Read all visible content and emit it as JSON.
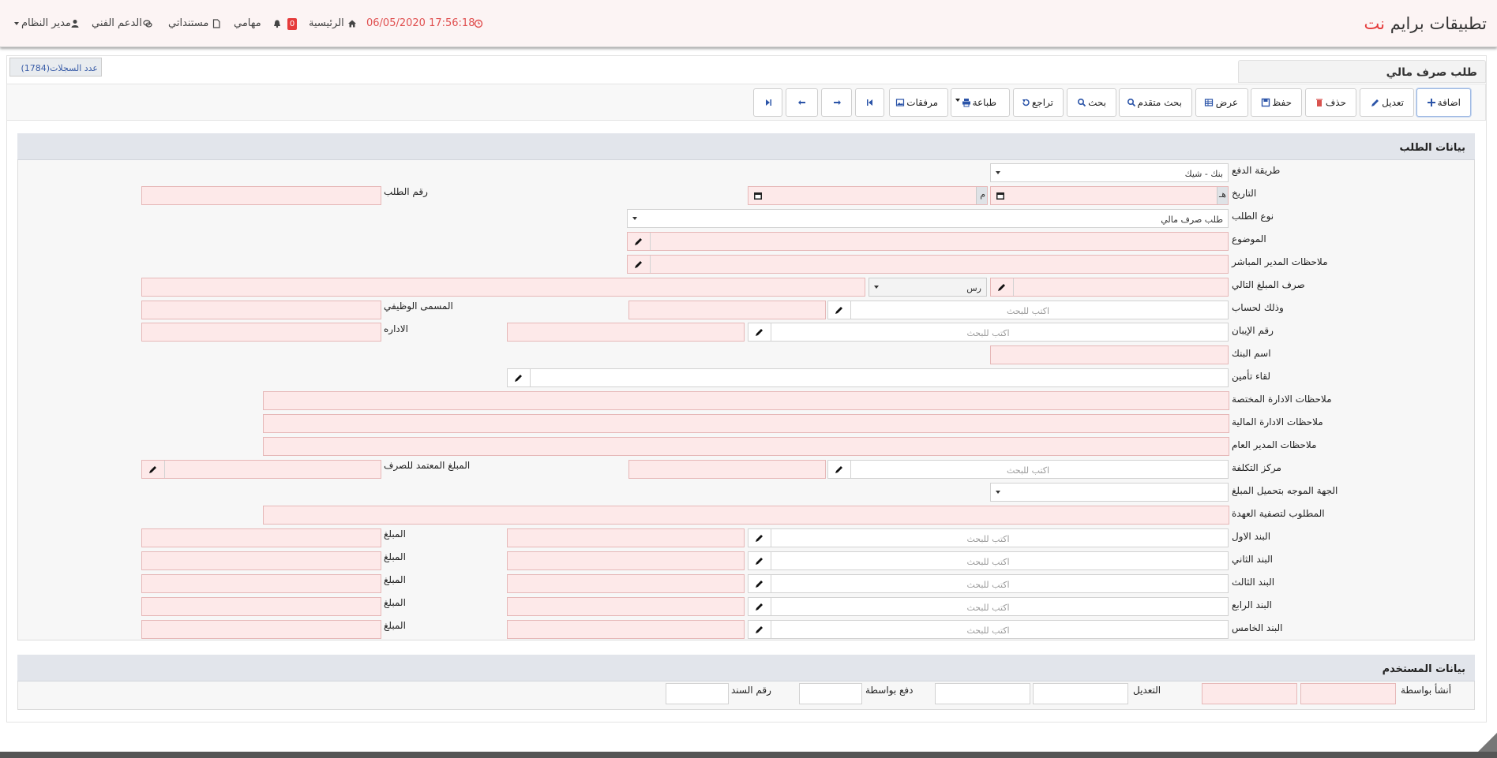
{
  "header": {
    "brand": "تطبيقات برايم",
    "brand_accent": "نت",
    "datetime": "17:56:18 06/05/2020",
    "home": "الرئيسية",
    "tasks": "مهامي",
    "tasks_count": "0",
    "documents": "مستنداتي",
    "support": "الدعم الفني",
    "user": "مدير النظام"
  },
  "page": {
    "title": "طلب صرف مالي",
    "records": "عدد السجلات(1784)"
  },
  "toolbar": {
    "add": "اضافة",
    "edit": "تعديل",
    "delete": "حذف",
    "save": "حفظ",
    "view": "عرض",
    "advanced_search": "بحث متقدم",
    "search": "بحث",
    "undo": "تراجع",
    "print": "طباعة",
    "attachments": "مرفقات"
  },
  "request_section": {
    "title": "بيانات الطلب",
    "labels": [
      "طريقة الدفع",
      "التاريخ",
      "نوع الطلب",
      "الموضوع",
      "ملاحظات المدير المباشر",
      "صرف المبلغ التالي",
      "وذلك لحساب",
      "رقم الإيبان",
      "اسم البنك",
      "لقاء تأمين",
      "ملاحظات الادارة المختصة",
      "ملاحظات الادارة المالية",
      "ملاحظات المدير العام",
      "مركز التكلفة",
      "الجهة الموجه بتحميل المبلغ",
      "المطلوب لتصفية العهدة",
      "البند الاول",
      "البند الثاني",
      "البند الثالث",
      "البند الرابع",
      "البند الخامس"
    ],
    "payment_method": "بنك - شيك",
    "hijri_suffix": "هـ",
    "gregorian_suffix": "م",
    "request_number_label": "رقم الطلب",
    "request_type": "طلب صرف مالي",
    "currency": "رس",
    "job_title_label": "المسمى الوظيفي",
    "department_label": "الاداره",
    "approved_amount_label": "المبلغ المعتمد للصرف",
    "amount_label": "المبلغ",
    "search_placeholder": "اكتب للبحث"
  },
  "user_section": {
    "title": "بيانات المستخدم",
    "created_by": "أنشأ بواسطة",
    "modified": "التعديل",
    "paid_by": "دفع بواسطة",
    "voucher_number": "رقم السند"
  }
}
